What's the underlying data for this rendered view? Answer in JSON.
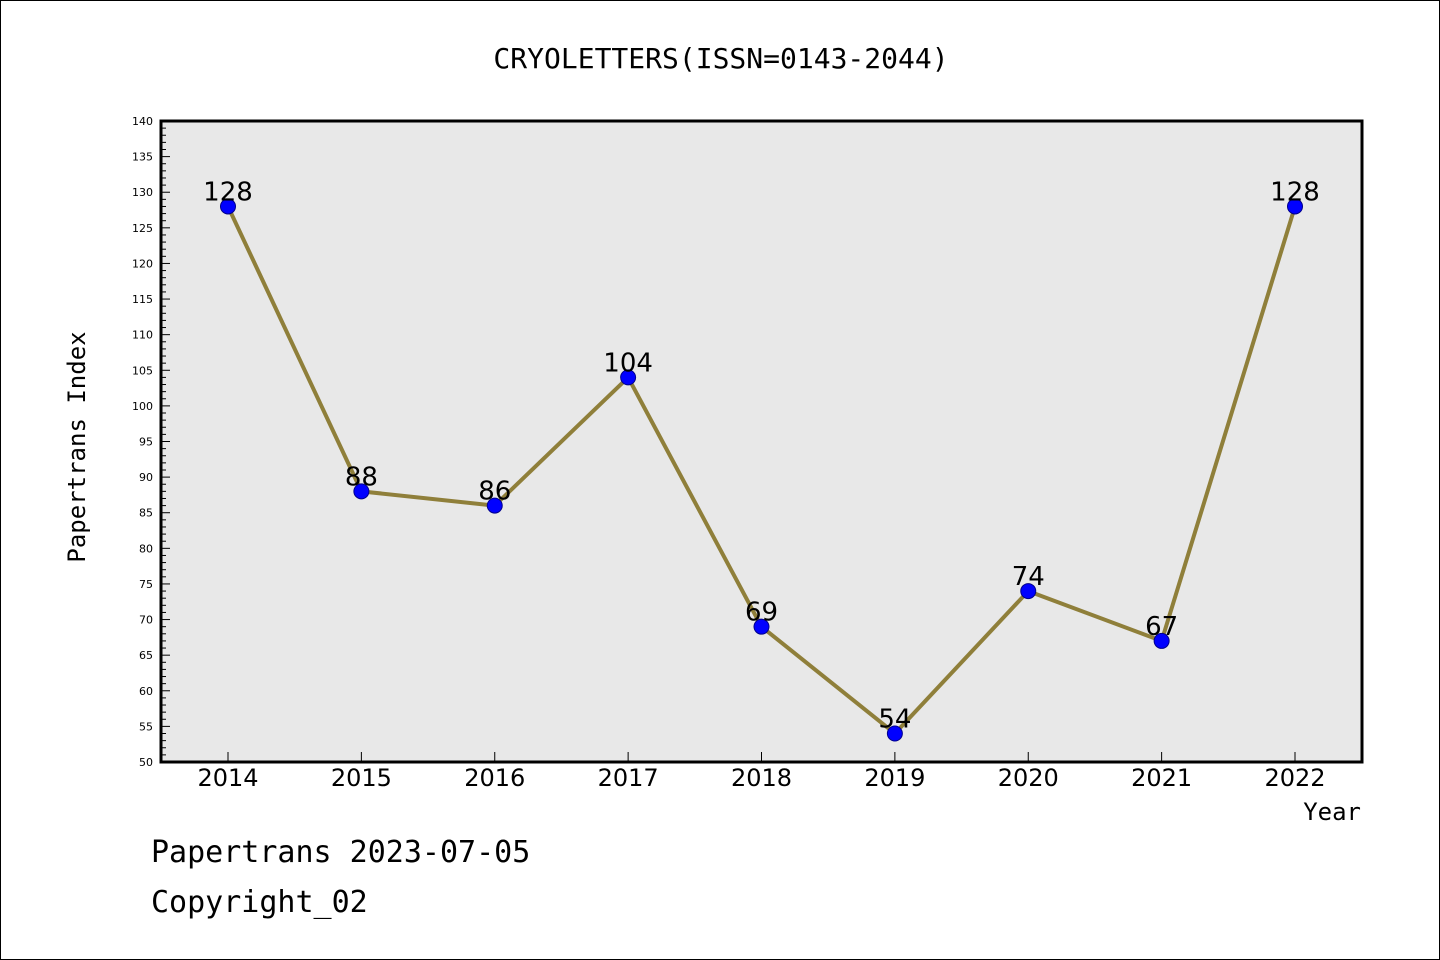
{
  "chart_data": {
    "type": "line",
    "title": "CRYOLETTERS(ISSN=0143-2044)",
    "xlabel": "Year",
    "ylabel": "Papertrans Index",
    "categories": [
      "2014",
      "2015",
      "2016",
      "2017",
      "2018",
      "2019",
      "2020",
      "2021",
      "2022"
    ],
    "values": [
      128,
      88,
      86,
      104,
      69,
      54,
      74,
      67,
      128
    ],
    "ylim": [
      50,
      140
    ],
    "yticks": [
      50,
      55,
      60,
      65,
      70,
      75,
      80,
      85,
      90,
      95,
      100,
      105,
      110,
      115,
      120,
      125,
      130,
      135,
      140
    ],
    "grid": false,
    "colors": {
      "line": "#8f7f3a",
      "marker": "#0000ff",
      "plot_background": "#e8e8e8"
    }
  },
  "footer": {
    "line1": "Papertrans 2023-07-05",
    "line2": "Copyright_02"
  }
}
